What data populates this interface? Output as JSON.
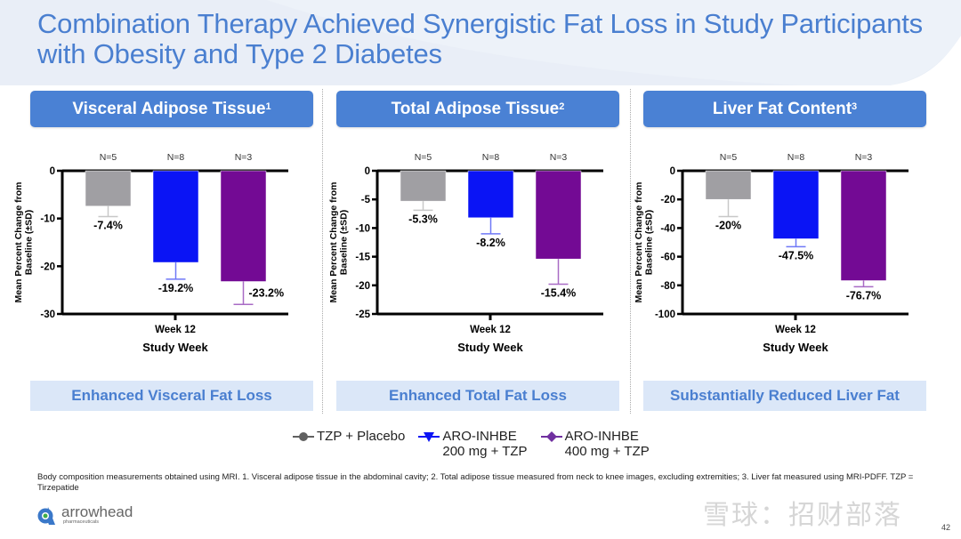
{
  "title": "Combination Therapy Achieved Synergistic Fat Loss in Study Participants with Obesity and Type 2 Diabetes",
  "panels": [
    {
      "header": "Visceral Adipose Tissue",
      "superscript": "1",
      "footer": "Enhanced Visceral Fat Loss"
    },
    {
      "header": "Total Adipose Tissue",
      "superscript": "2",
      "footer": "Enhanced Total Fat Loss"
    },
    {
      "header": "Liver Fat Content",
      "superscript": "3",
      "footer": "Substantially Reduced Liver Fat"
    }
  ],
  "colors": {
    "placebo": "#a09fa3",
    "aro200": "#0a14f5",
    "aro400": "#730a94",
    "header_bg": "#4a81d4",
    "footer_bg": "#dbe7f8",
    "title": "#4a7fd0"
  },
  "legend": [
    {
      "label_line1": "TZP + Placebo",
      "label_line2": "",
      "marker": "circle",
      "color": "#606060"
    },
    {
      "label_line1": "ARO-INHBE",
      "label_line2": "200 mg + TZP",
      "marker": "triangle-down",
      "color": "#0a14f5"
    },
    {
      "label_line1": "ARO-INHBE",
      "label_line2": "400 mg + TZP",
      "marker": "diamond",
      "color": "#7030a0"
    }
  ],
  "chart_data": [
    {
      "type": "bar",
      "title": "Visceral Adipose Tissue",
      "xlabel": "Study Week",
      "ylabel": "Mean Percent Change from Baseline (±SD)",
      "categories": [
        "Week 12"
      ],
      "ylim": [
        -30,
        0
      ],
      "yticks": [
        0,
        -10,
        -20,
        -30
      ],
      "series": [
        {
          "name": "TZP + Placebo",
          "n_label": "N=5",
          "value": -7.4,
          "sd": 2.2,
          "label": "-7.4%"
        },
        {
          "name": "ARO-INHBE 200 mg + TZP",
          "n_label": "N=8",
          "value": -19.2,
          "sd": 3.5,
          "label": "-19.2%"
        },
        {
          "name": "ARO-INHBE 400 mg + TZP",
          "n_label": "N=3",
          "value": -23.2,
          "sd": 4.8,
          "label": "-23.2%"
        }
      ]
    },
    {
      "type": "bar",
      "title": "Total Adipose Tissue",
      "xlabel": "Study Week",
      "ylabel": "Mean Percent Change from Baseline (±SD)",
      "categories": [
        "Week 12"
      ],
      "ylim": [
        -25,
        0
      ],
      "yticks": [
        0,
        -5,
        -10,
        -15,
        -20,
        -25
      ],
      "series": [
        {
          "name": "TZP + Placebo",
          "n_label": "N=5",
          "value": -5.3,
          "sd": 1.6,
          "label": "-5.3%"
        },
        {
          "name": "ARO-INHBE 200 mg + TZP",
          "n_label": "N=8",
          "value": -8.2,
          "sd": 2.8,
          "label": "-8.2%"
        },
        {
          "name": "ARO-INHBE 400 mg + TZP",
          "n_label": "N=3",
          "value": -15.4,
          "sd": 4.4,
          "label": "-15.4%"
        }
      ]
    },
    {
      "type": "bar",
      "title": "Liver Fat Content",
      "xlabel": "Study Week",
      "ylabel": "Mean Percent Change from Baseline (±SD)",
      "categories": [
        "Week 12"
      ],
      "ylim": [
        -100,
        0
      ],
      "yticks": [
        0,
        -20,
        -40,
        -60,
        -80,
        -100
      ],
      "series": [
        {
          "name": "TZP + Placebo",
          "n_label": "N=5",
          "value": -20,
          "sd": 12,
          "label": "-20%"
        },
        {
          "name": "ARO-INHBE 200 mg + TZP",
          "n_label": "N=8",
          "value": -47.5,
          "sd": 5.5,
          "label": "-47.5%"
        },
        {
          "name": "ARO-INHBE 400 mg + TZP",
          "n_label": "N=3",
          "value": -76.7,
          "sd": 4.3,
          "label": "-76.7%"
        }
      ]
    }
  ],
  "footnote": "Body composition measurements obtained using MRI. 1. Visceral adipose tissue in the abdominal cavity; 2. Total adipose tissue measured from neck to knee images, excluding extremities; 3. Liver fat measured using MRI-PDFF. TZP = Tirzepatide",
  "logo": {
    "name": "arrowhead",
    "subtitle": "pharmaceuticals"
  },
  "watermark": "雪球：招财部落",
  "page_number": "42"
}
